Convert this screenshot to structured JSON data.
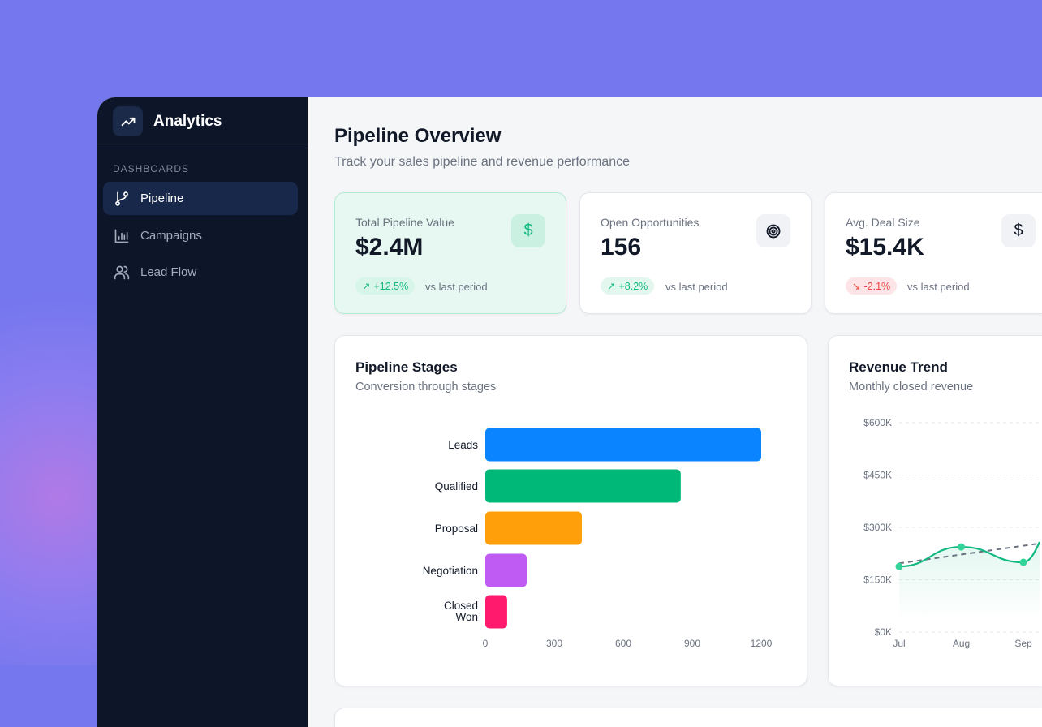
{
  "sidebar": {
    "brand": "Analytics",
    "logo_icon": "trending-up-icon",
    "section": "DASHBOARDS",
    "items": [
      {
        "label": "Pipeline",
        "icon": "git-branch-icon",
        "active": true
      },
      {
        "label": "Campaigns",
        "icon": "bar-chart-icon"
      },
      {
        "label": "Lead Flow",
        "icon": "users-icon"
      }
    ]
  },
  "header": {
    "title": "Pipeline Overview",
    "subtitle": "Track your sales pipeline and revenue performance"
  },
  "kpis": [
    {
      "label": "Total Pipeline Value",
      "value": "$2.4M",
      "icon": "dollar-icon",
      "change": "+12.5%",
      "trend": "up",
      "note": "vs last period"
    },
    {
      "label": "Open Opportunities",
      "value": "156",
      "icon": "target-icon",
      "change": "+8.2%",
      "trend": "up",
      "note": "vs last period"
    },
    {
      "label": "Avg. Deal Size",
      "value": "$15.4K",
      "icon": "dollar-icon",
      "change": "-2.1%",
      "trend": "down",
      "note": "vs last period"
    }
  ],
  "colors": {
    "accent": "#10b981",
    "negative": "#ef4444",
    "background": "#7577ee",
    "sidebar": "#0d1629"
  },
  "chart_data": [
    {
      "type": "bar",
      "orientation": "horizontal",
      "title": "Pipeline Stages",
      "subtitle": "Conversion through stages",
      "categories": [
        "Leads",
        "Qualified",
        "Proposal",
        "Negotiation",
        "Closed Won"
      ],
      "values": [
        1200,
        850,
        420,
        180,
        95
      ],
      "colors": [
        "#0a84ff",
        "#00b877",
        "#ff9f0a",
        "#bf5af2",
        "#ff1a6e"
      ],
      "xticks": [
        "0",
        "300",
        "600",
        "900",
        "1200"
      ],
      "xlim": [
        0,
        1200
      ],
      "grid": false
    },
    {
      "type": "line",
      "title": "Revenue Trend",
      "subtitle": "Monthly closed revenue",
      "categories": [
        "Jul",
        "Aug",
        "Sep"
      ],
      "series": [
        {
          "values": [
            188000,
            244000,
            200000
          ],
          "color": "#10b981"
        }
      ],
      "trendline": {
        "style": "dashed",
        "color": "#6b7280",
        "values": [
          197000,
          222000,
          246000
        ]
      },
      "yticks": [
        "$0K",
        "$150K",
        "$300K",
        "$450K",
        "$600K"
      ],
      "ylim": [
        0,
        600000
      ],
      "grid": true
    }
  ]
}
